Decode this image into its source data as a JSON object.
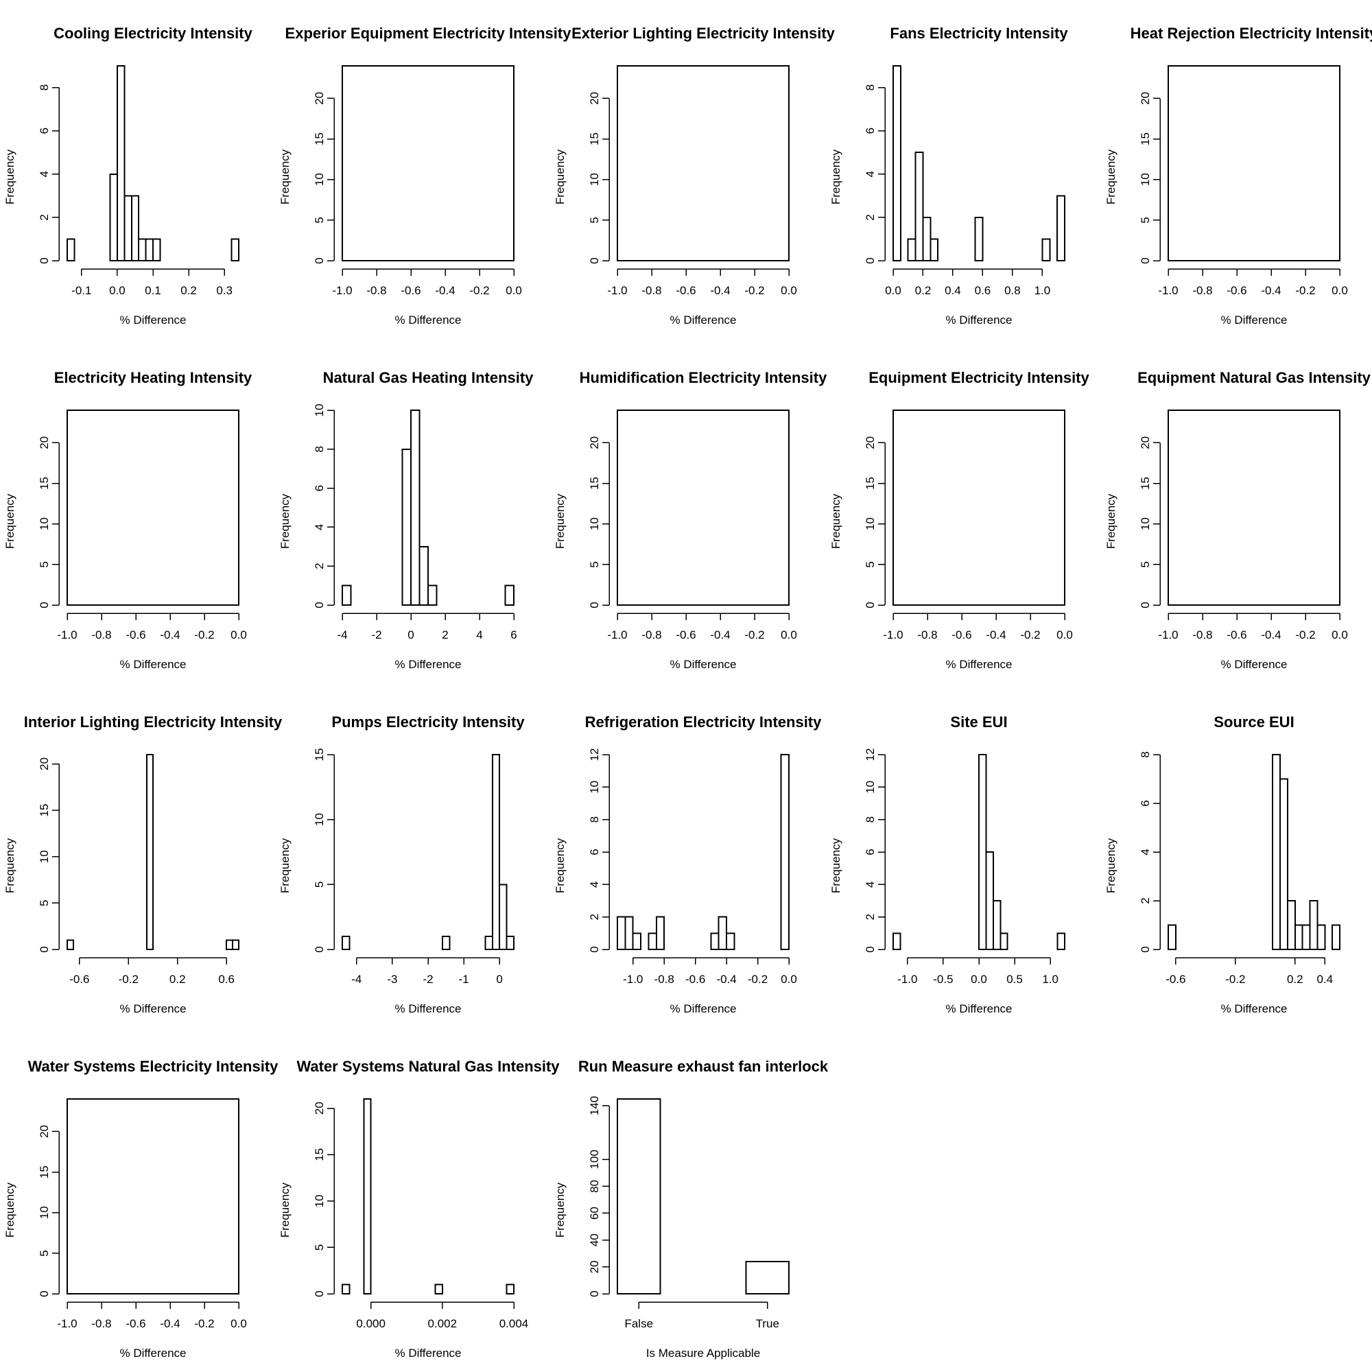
{
  "chart_data": [
    {
      "type": "bar",
      "title": "Cooling Electricity Intensity",
      "xlabel": "% Difference",
      "ylabel": "Frequency",
      "xlim": [
        -0.14,
        0.34
      ],
      "ylim": [
        0,
        9
      ],
      "xticks": [
        "-0.1",
        "0.0",
        "0.1",
        "0.2",
        "0.3"
      ],
      "yticks": [
        "0",
        "2",
        "4",
        "6",
        "8"
      ],
      "bins": [
        [
          -0.14,
          -0.12,
          1
        ],
        [
          -0.02,
          0,
          4
        ],
        [
          0,
          0.02,
          9
        ],
        [
          0.02,
          0.04,
          3
        ],
        [
          0.04,
          0.06,
          3
        ],
        [
          0.06,
          0.08,
          1
        ],
        [
          0.08,
          0.1,
          1
        ],
        [
          0.1,
          0.12,
          1
        ],
        [
          0.32,
          0.34,
          1
        ]
      ]
    },
    {
      "type": "bar",
      "title": "Experior Equipment Electricity Intensity",
      "xlabel": "% Difference",
      "ylabel": "Frequency",
      "xlim": [
        -1,
        0
      ],
      "ylim": [
        0,
        24
      ],
      "xticks": [
        "-1.0",
        "-0.8",
        "-0.6",
        "-0.4",
        "-0.2",
        "0.0"
      ],
      "yticks": [
        "0",
        "5",
        "10",
        "15",
        "20"
      ],
      "bins": [
        [
          -1,
          0,
          24
        ]
      ]
    },
    {
      "type": "bar",
      "title": "Exterior Lighting Electricity Intensity",
      "xlabel": "% Difference",
      "ylabel": "Frequency",
      "xlim": [
        -1,
        0
      ],
      "ylim": [
        0,
        24
      ],
      "xticks": [
        "-1.0",
        "-0.8",
        "-0.6",
        "-0.4",
        "-0.2",
        "0.0"
      ],
      "yticks": [
        "0",
        "5",
        "10",
        "15",
        "20"
      ],
      "bins": [
        [
          -1,
          0,
          24
        ]
      ]
    },
    {
      "type": "bar",
      "title": "Fans Electricity Intensity",
      "xlabel": "% Difference",
      "ylabel": "Frequency",
      "xlim": [
        0,
        1.15
      ],
      "ylim": [
        0,
        9
      ],
      "xticks": [
        "0.0",
        "0.2",
        "0.4",
        "0.6",
        "0.8",
        "1.0"
      ],
      "yticks": [
        "0",
        "2",
        "4",
        "6",
        "8"
      ],
      "bins": [
        [
          0,
          0.05,
          9
        ],
        [
          0.1,
          0.15,
          1
        ],
        [
          0.15,
          0.2,
          5
        ],
        [
          0.2,
          0.25,
          2
        ],
        [
          0.25,
          0.3,
          1
        ],
        [
          0.55,
          0.6,
          2
        ],
        [
          1.0,
          1.05,
          1
        ],
        [
          1.1,
          1.15,
          3
        ]
      ]
    },
    {
      "type": "bar",
      "title": "Heat Rejection Electricity Intensity",
      "xlabel": "% Difference",
      "ylabel": "Frequency",
      "xlim": [
        -1,
        0
      ],
      "ylim": [
        0,
        24
      ],
      "xticks": [
        "-1.0",
        "-0.8",
        "-0.6",
        "-0.4",
        "-0.2",
        "0.0"
      ],
      "yticks": [
        "0",
        "5",
        "10",
        "15",
        "20"
      ],
      "bins": [
        [
          -1,
          0,
          24
        ]
      ]
    },
    {
      "type": "bar",
      "title": "Electricity Heating Intensity",
      "xlabel": "% Difference",
      "ylabel": "Frequency",
      "xlim": [
        -1,
        0
      ],
      "ylim": [
        0,
        24
      ],
      "xticks": [
        "-1.0",
        "-0.8",
        "-0.6",
        "-0.4",
        "-0.2",
        "0.0"
      ],
      "yticks": [
        "0",
        "5",
        "10",
        "15",
        "20"
      ],
      "bins": [
        [
          -1,
          0,
          24
        ]
      ]
    },
    {
      "type": "bar",
      "title": "Natural Gas Heating Intensity",
      "xlabel": "% Difference",
      "ylabel": "Frequency",
      "xlim": [
        -4,
        6
      ],
      "ylim": [
        0,
        10
      ],
      "xticks": [
        "-4",
        "-2",
        "0",
        "2",
        "4",
        "6"
      ],
      "yticks": [
        "0",
        "2",
        "4",
        "6",
        "8",
        "10"
      ],
      "bins": [
        [
          -4,
          -3.5,
          1
        ],
        [
          -0.5,
          0,
          8
        ],
        [
          0,
          0.5,
          10
        ],
        [
          0.5,
          1,
          3
        ],
        [
          1,
          1.5,
          1
        ],
        [
          5.5,
          6,
          1
        ]
      ]
    },
    {
      "type": "bar",
      "title": "Humidification Electricity Intensity",
      "xlabel": "% Difference",
      "ylabel": "Frequency",
      "xlim": [
        -1,
        0
      ],
      "ylim": [
        0,
        24
      ],
      "xticks": [
        "-1.0",
        "-0.8",
        "-0.6",
        "-0.4",
        "-0.2",
        "0.0"
      ],
      "yticks": [
        "0",
        "5",
        "10",
        "15",
        "20"
      ],
      "bins": [
        [
          -1,
          0,
          24
        ]
      ]
    },
    {
      "type": "bar",
      "title": "Equipment Electricity Intensity",
      "xlabel": "% Difference",
      "ylabel": "Frequency",
      "xlim": [
        -1,
        0
      ],
      "ylim": [
        0,
        24
      ],
      "xticks": [
        "-1.0",
        "-0.8",
        "-0.6",
        "-0.4",
        "-0.2",
        "0.0"
      ],
      "yticks": [
        "0",
        "5",
        "10",
        "15",
        "20"
      ],
      "bins": [
        [
          -1,
          0,
          24
        ]
      ]
    },
    {
      "type": "bar",
      "title": "Equipment Natural Gas Intensity",
      "xlabel": "% Difference",
      "ylabel": "Frequency",
      "xlim": [
        -1,
        0
      ],
      "ylim": [
        0,
        24
      ],
      "xticks": [
        "-1.0",
        "-0.8",
        "-0.6",
        "-0.4",
        "-0.2",
        "0.0"
      ],
      "yticks": [
        "0",
        "5",
        "10",
        "15",
        "20"
      ],
      "bins": [
        [
          -1,
          0,
          24
        ]
      ]
    },
    {
      "type": "bar",
      "title": "Interior Lighting Electricity Intensity",
      "xlabel": "% Difference",
      "ylabel": "Frequency",
      "xlim": [
        -0.7,
        0.7
      ],
      "ylim": [
        0,
        21
      ],
      "xticks": [
        "-0.6",
        "-0.2",
        "0.2",
        "0.6"
      ],
      "yticks": [
        "0",
        "5",
        "10",
        "15",
        "20"
      ],
      "bins": [
        [
          -0.7,
          -0.65,
          1
        ],
        [
          -0.05,
          0,
          21
        ],
        [
          0.6,
          0.65,
          1
        ],
        [
          0.65,
          0.7,
          1
        ]
      ]
    },
    {
      "type": "bar",
      "title": "Pumps Electricity Intensity",
      "xlabel": "% Difference",
      "ylabel": "Frequency",
      "xlim": [
        -4.4,
        0.4
      ],
      "ylim": [
        0,
        15
      ],
      "xticks": [
        "-4",
        "-3",
        "-2",
        "-1",
        "0"
      ],
      "yticks": [
        "0",
        "5",
        "10",
        "15"
      ],
      "bins": [
        [
          -4.4,
          -4.2,
          1
        ],
        [
          -1.6,
          -1.4,
          1
        ],
        [
          -0.4,
          -0.2,
          1
        ],
        [
          -0.2,
          0,
          15
        ],
        [
          0,
          0.2,
          5
        ],
        [
          0.2,
          0.4,
          1
        ]
      ]
    },
    {
      "type": "bar",
      "title": "Refrigeration Electricity Intensity",
      "xlabel": "% Difference",
      "ylabel": "Frequency",
      "xlim": [
        -1.1,
        0
      ],
      "ylim": [
        0,
        12
      ],
      "xticks": [
        "-1.0",
        "-0.8",
        "-0.6",
        "-0.4",
        "-0.2",
        "0.0"
      ],
      "yticks": [
        "0",
        "2",
        "4",
        "6",
        "8",
        "10",
        "12"
      ],
      "bins": [
        [
          -1.1,
          -1.05,
          2
        ],
        [
          -1.05,
          -1.0,
          2
        ],
        [
          -1.0,
          -0.95,
          1
        ],
        [
          -0.9,
          -0.85,
          1
        ],
        [
          -0.85,
          -0.8,
          2
        ],
        [
          -0.5,
          -0.45,
          1
        ],
        [
          -0.45,
          -0.4,
          2
        ],
        [
          -0.4,
          -0.35,
          1
        ],
        [
          -0.05,
          0,
          12
        ]
      ]
    },
    {
      "type": "bar",
      "title": "Site EUI",
      "xlabel": "% Difference",
      "ylabel": "Frequency",
      "xlim": [
        -1.2,
        1.2
      ],
      "ylim": [
        0,
        12
      ],
      "xticks": [
        "-1.0",
        "-0.5",
        "0.0",
        "0.5",
        "1.0"
      ],
      "yticks": [
        "0",
        "2",
        "4",
        "6",
        "8",
        "10",
        "12"
      ],
      "bins": [
        [
          -1.2,
          -1.1,
          1
        ],
        [
          0,
          0.1,
          12
        ],
        [
          0.1,
          0.2,
          6
        ],
        [
          0.2,
          0.3,
          3
        ],
        [
          0.3,
          0.4,
          1
        ],
        [
          1.1,
          1.2,
          1
        ]
      ]
    },
    {
      "type": "bar",
      "title": "Source EUI",
      "xlabel": "% Difference",
      "ylabel": "Frequency",
      "xlim": [
        -0.65,
        0.5
      ],
      "ylim": [
        0,
        8
      ],
      "xticks": [
        "-0.6",
        "-0.2",
        "0.2",
        "0.4"
      ],
      "yticks": [
        "0",
        "2",
        "4",
        "6",
        "8"
      ],
      "bins": [
        [
          -0.65,
          -0.6,
          1
        ],
        [
          0.05,
          0.1,
          8
        ],
        [
          0.1,
          0.15,
          7
        ],
        [
          0.15,
          0.2,
          2
        ],
        [
          0.2,
          0.25,
          1
        ],
        [
          0.25,
          0.3,
          1
        ],
        [
          0.3,
          0.35,
          2
        ],
        [
          0.35,
          0.4,
          1
        ],
        [
          0.45,
          0.5,
          1
        ]
      ]
    },
    {
      "type": "bar",
      "title": "Water Systems Electricity Intensity",
      "xlabel": "% Difference",
      "ylabel": "Frequency",
      "xlim": [
        -1,
        0
      ],
      "ylim": [
        0,
        24
      ],
      "xticks": [
        "-1.0",
        "-0.8",
        "-0.6",
        "-0.4",
        "-0.2",
        "0.0"
      ],
      "yticks": [
        "0",
        "5",
        "10",
        "15",
        "20"
      ],
      "bins": [
        [
          -1,
          0,
          24
        ]
      ]
    },
    {
      "type": "bar",
      "title": "Water Systems Natural Gas Intensity",
      "xlabel": "% Difference",
      "ylabel": "Frequency",
      "xlim": [
        -0.0008,
        0.004
      ],
      "ylim": [
        0,
        21
      ],
      "xticks": [
        "0.000",
        "0.002",
        "0.004"
      ],
      "yticks": [
        "0",
        "5",
        "10",
        "15",
        "20"
      ],
      "bins": [
        [
          -0.0008,
          -0.0006,
          1
        ],
        [
          -0.0002,
          0,
          21
        ],
        [
          0.0018,
          0.002,
          1
        ],
        [
          0.0038,
          0.004,
          1
        ]
      ]
    },
    {
      "type": "bar",
      "title": "Run Measure exhaust fan interlock",
      "xlabel": "Is Measure Applicable",
      "ylabel": "Frequency",
      "xlim": [
        0,
        1
      ],
      "ylim": [
        0,
        145
      ],
      "xticks": [
        "False",
        "True"
      ],
      "yticks": [
        "0",
        "20",
        "40",
        "60",
        "80",
        "100",
        "140"
      ],
      "bins": [
        [
          0,
          0.25,
          145
        ],
        [
          0.75,
          1,
          24
        ]
      ]
    }
  ]
}
